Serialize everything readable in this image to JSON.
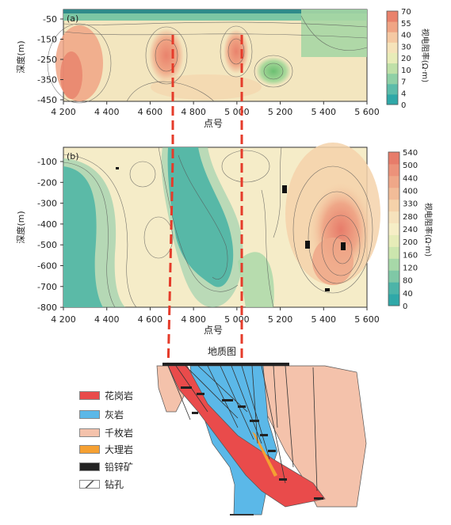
{
  "chart_data": [
    {
      "type": "heatmap",
      "panel_label": "(a)",
      "xlabel": "点号",
      "ylabel": "深度(m)",
      "x_ticks": [
        4200,
        4400,
        4600,
        4800,
        5000,
        5200,
        5400,
        5600
      ],
      "x_tick_labels": [
        "4 200",
        "4 400",
        "4 600",
        "4 800",
        "5 000",
        "5 200",
        "5 400",
        "5 600"
      ],
      "y_ticks": [
        -50,
        -150,
        -250,
        -350,
        -450
      ],
      "y_tick_labels": [
        "-50",
        "-150",
        "-250",
        "-350",
        "-450"
      ],
      "xlim": [
        4200,
        5600
      ],
      "ylim": [
        -450,
        0
      ],
      "colorbar": {
        "label": "视电阻率(Ω·m)",
        "ticks": [
          0,
          4,
          7,
          10,
          20,
          30,
          40,
          55,
          70
        ],
        "tick_labels": [
          "0",
          "4",
          "7",
          "10",
          "20",
          "30",
          "40",
          "55",
          "70"
        ],
        "colors": [
          "#2fa8a8",
          "#5cbcaa",
          "#8fd0a6",
          "#bfe0a8",
          "#e8ecb8",
          "#f6e3ba",
          "#f5c9a3",
          "#f0a585",
          "#e9826c"
        ]
      },
      "features": [
        {
          "name": "high-west",
          "x": 4270,
          "y": -300,
          "value": 55
        },
        {
          "name": "high-center-1",
          "x": 4650,
          "y": -160,
          "value": 55
        },
        {
          "name": "high-center-2",
          "x": 4990,
          "y": -170,
          "value": 55
        },
        {
          "name": "low-east",
          "x": 5280,
          "y": -270,
          "value": 7
        },
        {
          "name": "low-top",
          "x": 5000,
          "y": -20,
          "value": 4
        }
      ]
    },
    {
      "type": "heatmap",
      "panel_label": "(b)",
      "xlabel": "点号",
      "ylabel": "深度(m)",
      "x_ticks": [
        4200,
        4400,
        4600,
        4800,
        5000,
        5200,
        5400,
        5600
      ],
      "x_tick_labels": [
        "4 200",
        "4 400",
        "4 600",
        "4 800",
        "5 000",
        "5 200",
        "5 400",
        "5 600"
      ],
      "y_ticks": [
        -100,
        -200,
        -300,
        -400,
        -500,
        -600,
        -700,
        -800
      ],
      "y_tick_labels": [
        "-100",
        "-200",
        "-300",
        "-400",
        "-500",
        "-600",
        "-700",
        "-800"
      ],
      "xlim": [
        4200,
        5600
      ],
      "ylim": [
        -800,
        -50
      ],
      "colorbar": {
        "label": "视电阻率(Ω·m)",
        "ticks": [
          0,
          40,
          80,
          120,
          160,
          200,
          240,
          280,
          330,
          400,
          440,
          500,
          540
        ],
        "tick_labels": [
          "0",
          "40",
          "80",
          "120",
          "160",
          "200",
          "240",
          "280",
          "330",
          "400",
          "440",
          "500",
          "540"
        ],
        "colors": [
          "#2fa8a8",
          "#4cb4a8",
          "#7fc8a6",
          "#a7d8a8",
          "#cce6ae",
          "#e6ecb8",
          "#f6eec6",
          "#f6e2bc",
          "#f5d2aa",
          "#f2bc98",
          "#efa788",
          "#ec927a",
          "#e77c6a"
        ]
      },
      "features": [
        {
          "name": "low-west",
          "x": 4260,
          "y": -480,
          "value": 20
        },
        {
          "name": "low-center",
          "x": 4760,
          "y": -450,
          "value": 10
        },
        {
          "name": "low-east",
          "x": 5180,
          "y": -620,
          "value": 60
        },
        {
          "name": "high-east",
          "x": 5450,
          "y": -330,
          "value": 500
        }
      ]
    }
  ],
  "geology": {
    "title": "地质图",
    "legend": [
      {
        "label": "花岗岩",
        "color": "#e94b4b"
      },
      {
        "label": "灰岩",
        "color": "#5bb8e8"
      },
      {
        "label": "千枚岩",
        "color": "#f4c2ab"
      },
      {
        "label": "大理岩",
        "color": "#f5a032"
      },
      {
        "label": "铅锌矿",
        "color": "#222222"
      },
      {
        "label": "钻孔",
        "color": "#ffffff"
      }
    ]
  }
}
